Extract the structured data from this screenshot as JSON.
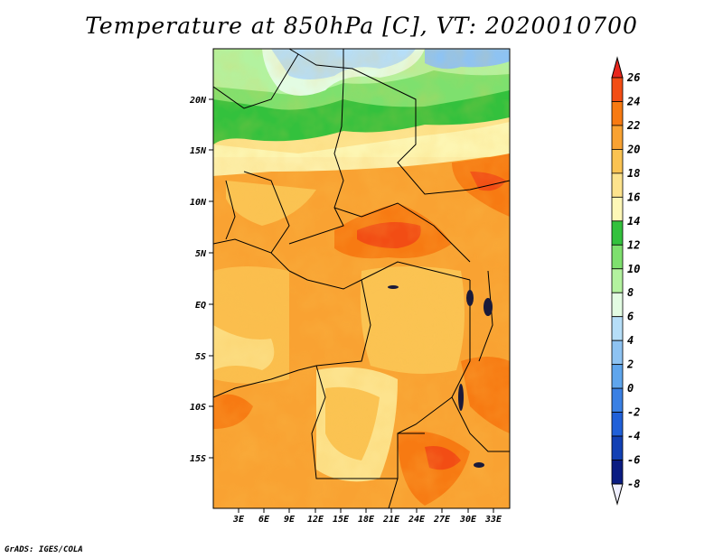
{
  "title": "Temperature at 850hPa [C], VT: 2020010700",
  "credit": "GrADS: IGES/COLA",
  "map": {
    "lon_labels": [
      "3E",
      "6E",
      "9E",
      "12E",
      "15E",
      "18E",
      "21E",
      "24E",
      "27E",
      "30E",
      "33E"
    ],
    "lat_labels": [
      "20N",
      "15N",
      "10N",
      "5N",
      "EQ",
      "5S",
      "10S",
      "15S"
    ],
    "field": "Temperature at 850hPa",
    "units": "C"
  },
  "colorbar": {
    "labels": [
      "26",
      "24",
      "22",
      "20",
      "18",
      "16",
      "14",
      "12",
      "10",
      "8",
      "6",
      "4",
      "2",
      "0",
      "-2",
      "-4",
      "-6",
      "-8"
    ],
    "colors": [
      "#e8261c",
      "#f24d14",
      "#f77a12",
      "#f9a232",
      "#fbc352",
      "#fde38d",
      "#fdf7b7",
      "#33c13d",
      "#7ee06e",
      "#b3f29f",
      "#e3fce3",
      "#b6def8",
      "#8ec3f2",
      "#5fa5ec",
      "#3a80e4",
      "#2060d8",
      "#1240b4",
      "#0a1c82",
      "#f0f0ff"
    ]
  }
}
